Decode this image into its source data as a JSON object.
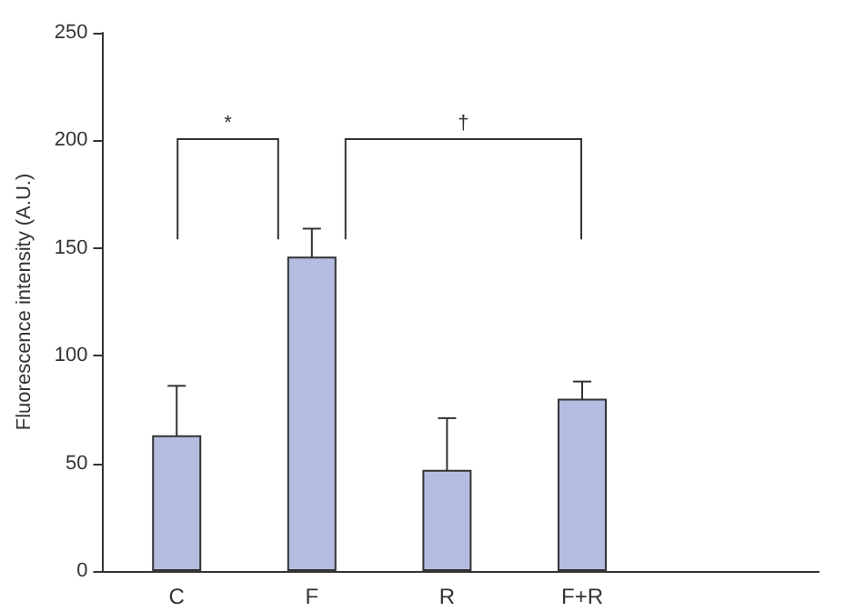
{
  "chart_data": {
    "type": "bar",
    "ylabel": "Fluorescence intensity (A.U.)",
    "categories": [
      "C",
      "F",
      "R",
      "F+R"
    ],
    "values": [
      63,
      146,
      47,
      80
    ],
    "errors": [
      23,
      13,
      24,
      8
    ],
    "color": "#b4bde0",
    "ylim": [
      0,
      250
    ],
    "yticks": [
      0,
      50,
      100,
      150,
      200,
      250
    ],
    "grid": false,
    "annotations": [
      "*",
      "†"
    ]
  }
}
